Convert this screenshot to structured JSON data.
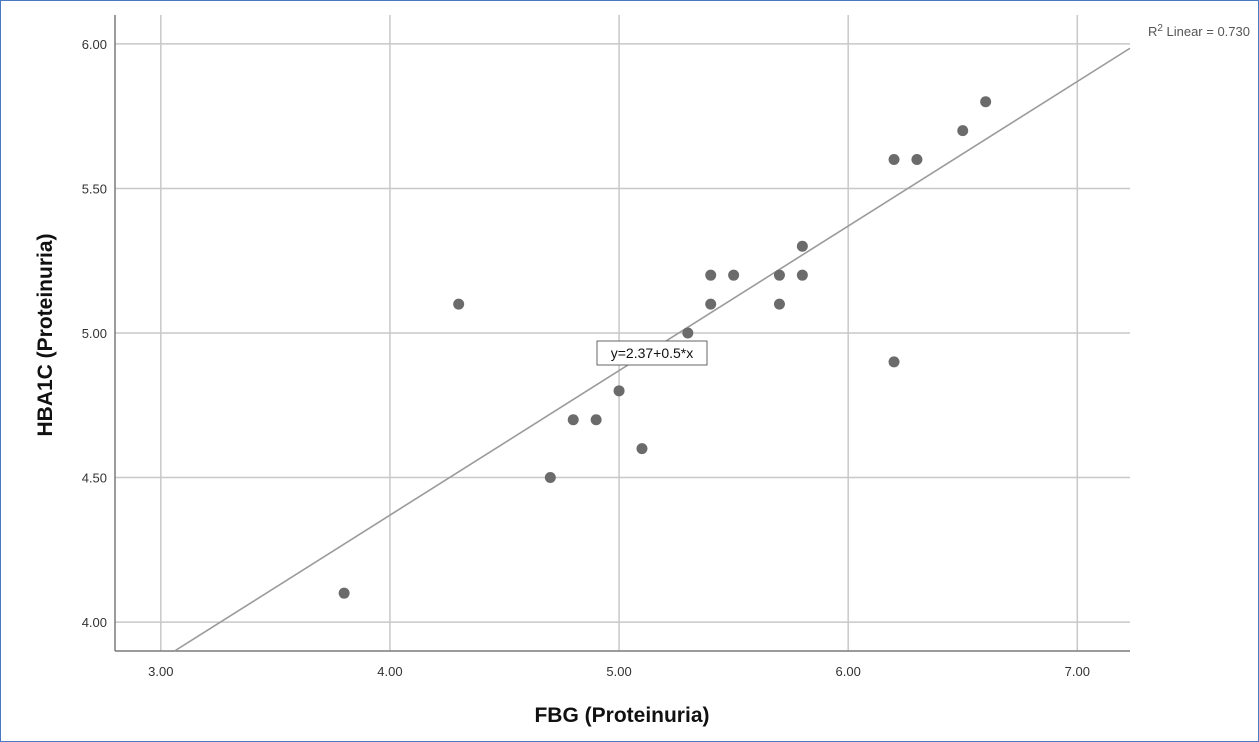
{
  "chart_data": {
    "type": "scatter",
    "xlabel": "FBG (Proteinuria)",
    "ylabel": "HBA1C (Proteinuria)",
    "xlim": [
      2.8,
      7.23
    ],
    "ylim": [
      3.9,
      6.1
    ],
    "x_ticks": [
      3.0,
      4.0,
      5.0,
      6.0,
      7.0
    ],
    "y_ticks": [
      4.0,
      4.5,
      5.0,
      5.5,
      6.0
    ],
    "x_tick_labels": [
      "3.00",
      "4.00",
      "5.00",
      "6.00",
      "7.00"
    ],
    "y_tick_labels": [
      "4.00",
      "4.50",
      "5.00",
      "5.50",
      "6.00"
    ],
    "grid": true,
    "points": [
      {
        "x": 3.8,
        "y": 4.1
      },
      {
        "x": 4.3,
        "y": 5.1
      },
      {
        "x": 4.7,
        "y": 4.5
      },
      {
        "x": 4.8,
        "y": 4.7
      },
      {
        "x": 4.9,
        "y": 4.7
      },
      {
        "x": 5.0,
        "y": 4.8
      },
      {
        "x": 5.1,
        "y": 4.6
      },
      {
        "x": 5.3,
        "y": 5.0
      },
      {
        "x": 5.4,
        "y": 5.1
      },
      {
        "x": 5.4,
        "y": 5.2
      },
      {
        "x": 5.5,
        "y": 5.2
      },
      {
        "x": 5.7,
        "y": 5.1
      },
      {
        "x": 5.7,
        "y": 5.2
      },
      {
        "x": 5.8,
        "y": 5.2
      },
      {
        "x": 5.8,
        "y": 5.3
      },
      {
        "x": 6.2,
        "y": 4.9
      },
      {
        "x": 6.2,
        "y": 5.6
      },
      {
        "x": 6.3,
        "y": 5.6
      },
      {
        "x": 6.5,
        "y": 5.7
      },
      {
        "x": 6.6,
        "y": 5.8
      }
    ],
    "fit_line": {
      "intercept": 2.37,
      "slope": 0.5,
      "equation_label": "y=2.37+0.5*x"
    },
    "r2_label": {
      "prefix": "R",
      "superscript": "2",
      "text": " Linear = 0.730"
    },
    "colors": {
      "points": "#6b6b6b",
      "fit_line": "#9a9a9a",
      "grid": "#c8c8c8",
      "frame": "#4a78c2"
    }
  }
}
